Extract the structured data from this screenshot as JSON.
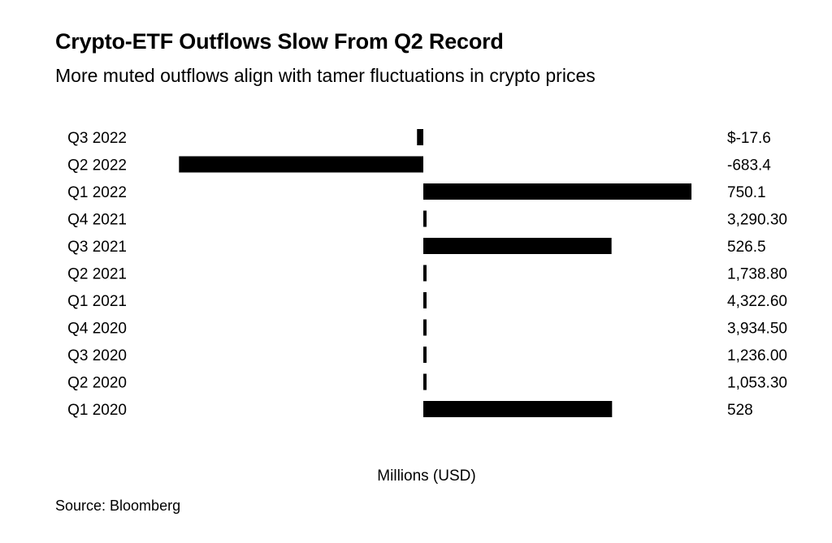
{
  "chart_data": {
    "type": "bar",
    "orientation": "horizontal",
    "title": "Crypto-ETF Outflows Slow From Q2 Record",
    "subtitle": "More muted outflows align with tamer fluctuations in crypto prices",
    "xlabel": "Millions (USD)",
    "ylabel": "",
    "source": "Source: Bloomberg",
    "categories": [
      "Q3 2022",
      "Q2 2022",
      "Q1 2022",
      "Q4 2021",
      "Q3 2021",
      "Q2 2021",
      "Q1 2021",
      "Q4 2020",
      "Q3 2020",
      "Q2 2020",
      "Q1 2020"
    ],
    "values": [
      -17.6,
      -683.4,
      750.1,
      3290.3,
      526.5,
      1738.8,
      4322.6,
      3934.5,
      1236.0,
      1053.3,
      528
    ],
    "value_labels": [
      "$-17.6",
      "-683.4",
      "750.1",
      "3,290.30",
      "526.5",
      "1,738.80",
      "4,322.60",
      "3,934.50",
      "1,236.00",
      "1,053.30",
      "528"
    ],
    "bar_color": "#000000",
    "grid": false
  }
}
